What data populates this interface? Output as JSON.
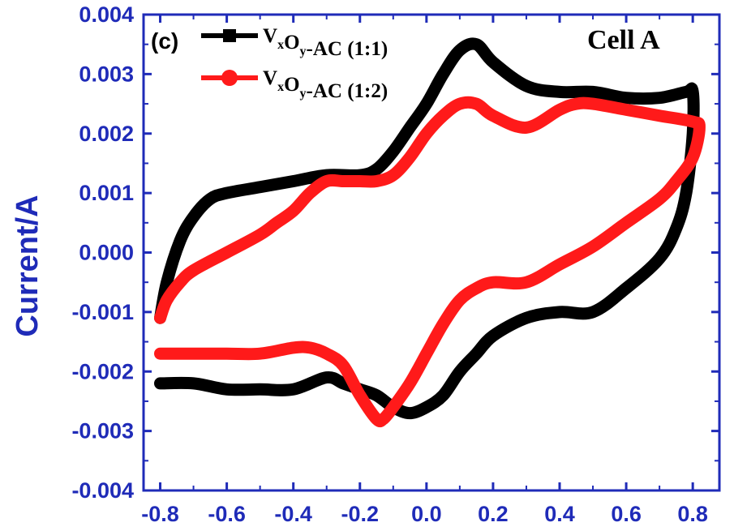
{
  "chart_data": {
    "type": "line",
    "panel_label": "(c)",
    "annotation": "Cell A",
    "title": "",
    "xlabel": "",
    "ylabel": "Current/A",
    "xlim": [
      -0.85,
      0.88
    ],
    "ylim": [
      -0.004,
      0.004
    ],
    "x_ticks": [
      -0.8,
      -0.6,
      -0.4,
      -0.2,
      0.0,
      0.2,
      0.4,
      0.6,
      0.8
    ],
    "x_tick_labels": [
      "-0.8",
      "-0.6",
      "-0.4",
      "-0.2",
      "0.0",
      "0.2",
      "0.4",
      "0.6",
      "0.8"
    ],
    "y_ticks": [
      -0.004,
      -0.003,
      -0.002,
      -0.001,
      0.0,
      0.001,
      0.002,
      0.003,
      0.004
    ],
    "y_tick_labels": [
      "-0.004",
      "-0.003",
      "-0.002",
      "-0.001",
      "0.000",
      "0.001",
      "0.002",
      "0.003",
      "0.004"
    ],
    "grid": false,
    "legend_position": "top-left",
    "series": [
      {
        "name_main": "V",
        "name_sub1": "x",
        "name_mid": "O",
        "name_sub2": "y",
        "name_tail": "-AC (1:1)",
        "color": "#000000",
        "marker": "square",
        "x": [
          -0.8,
          -0.78,
          -0.74,
          -0.7,
          -0.65,
          -0.6,
          -0.5,
          -0.4,
          -0.3,
          -0.2,
          -0.15,
          -0.1,
          -0.05,
          0.0,
          0.05,
          0.1,
          0.15,
          0.2,
          0.3,
          0.4,
          0.5,
          0.6,
          0.7,
          0.78,
          0.8,
          0.8,
          0.78,
          0.75,
          0.7,
          0.6,
          0.5,
          0.4,
          0.3,
          0.2,
          0.15,
          0.1,
          0.05,
          0.0,
          -0.05,
          -0.1,
          -0.15,
          -0.2,
          -0.25,
          -0.3,
          -0.4,
          -0.5,
          -0.6,
          -0.7,
          -0.8
        ],
        "y": [
          -0.0011,
          -0.0005,
          0.0002,
          0.0006,
          0.0009,
          0.001,
          0.0011,
          0.0012,
          0.0013,
          0.0013,
          0.0014,
          0.0017,
          0.0021,
          0.0025,
          0.003,
          0.0034,
          0.0035,
          0.0032,
          0.0028,
          0.0027,
          0.0027,
          0.0026,
          0.0026,
          0.0027,
          0.0027,
          0.002,
          0.001,
          0.0004,
          -0.0001,
          -0.0006,
          -0.001,
          -0.001,
          -0.0011,
          -0.0014,
          -0.0017,
          -0.002,
          -0.0024,
          -0.0026,
          -0.0027,
          -0.0026,
          -0.0024,
          -0.0023,
          -0.0022,
          -0.0021,
          -0.0023,
          -0.0023,
          -0.0023,
          -0.0022,
          -0.0022
        ]
      },
      {
        "name_main": "V",
        "name_sub1": "x",
        "name_mid": "O",
        "name_sub2": "y",
        "name_tail": "-AC (1:2)",
        "color": "#ff1a1a",
        "marker": "circle",
        "x": [
          -0.8,
          -0.78,
          -0.74,
          -0.7,
          -0.6,
          -0.5,
          -0.45,
          -0.4,
          -0.35,
          -0.3,
          -0.25,
          -0.2,
          -0.15,
          -0.1,
          -0.05,
          0.0,
          0.05,
          0.1,
          0.15,
          0.2,
          0.3,
          0.4,
          0.45,
          0.5,
          0.6,
          0.7,
          0.8,
          0.82,
          0.8,
          0.75,
          0.7,
          0.6,
          0.5,
          0.4,
          0.3,
          0.2,
          0.15,
          0.1,
          0.05,
          0.0,
          -0.05,
          -0.1,
          -0.13,
          -0.15,
          -0.2,
          -0.25,
          -0.3,
          -0.35,
          -0.4,
          -0.5,
          -0.6,
          -0.7,
          -0.8
        ],
        "y": [
          -0.0011,
          -0.0008,
          -0.0005,
          -0.0003,
          0.0,
          0.0003,
          0.0005,
          0.0007,
          0.001,
          0.0012,
          0.0012,
          0.0012,
          0.0012,
          0.0013,
          0.0016,
          0.002,
          0.0023,
          0.0025,
          0.0025,
          0.0023,
          0.0021,
          0.0024,
          0.0025,
          0.0025,
          0.0024,
          0.0023,
          0.0022,
          0.0021,
          0.0016,
          0.0012,
          0.0009,
          0.0005,
          0.0001,
          -0.0002,
          -0.0005,
          -0.0005,
          -0.0006,
          -0.0008,
          -0.0012,
          -0.0017,
          -0.0022,
          -0.0026,
          -0.0028,
          -0.0028,
          -0.0024,
          -0.0019,
          -0.0017,
          -0.0016,
          -0.0016,
          -0.0017,
          -0.0017,
          -0.0017,
          -0.0017
        ]
      }
    ]
  }
}
